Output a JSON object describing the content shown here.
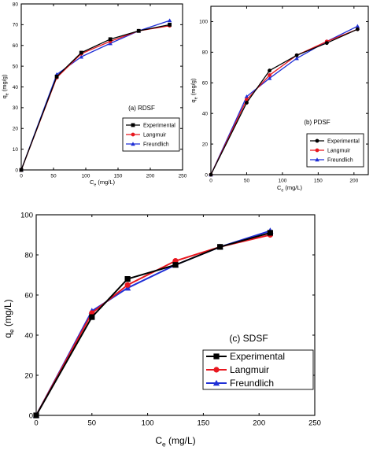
{
  "colors": {
    "Experimental": "#000000",
    "Langmuir": "#e8171f",
    "Freundlich": "#1f2fd6"
  },
  "chart_data": [
    {
      "type": "line",
      "title": "(a) RDSF",
      "xlabel": "Ce (mg/L)",
      "ylabel": "qe (mg/g)",
      "xlim": [
        0,
        250
      ],
      "ylim": [
        0,
        80
      ],
      "xticks": [
        0,
        50,
        100,
        150,
        200,
        250
      ],
      "yticks": [
        0,
        10,
        20,
        30,
        40,
        50,
        60,
        70,
        80
      ],
      "legend": "right",
      "series": [
        {
          "name": "Experimental",
          "marker": "square",
          "x": [
            0,
            55,
            93,
            138,
            182,
            230
          ],
          "y": [
            0,
            45,
            56.5,
            63,
            67,
            70
          ]
        },
        {
          "name": "Langmuir",
          "marker": "circle",
          "x": [
            0,
            55,
            93,
            138,
            182,
            230
          ],
          "y": [
            0,
            44.5,
            56,
            62,
            67,
            69.5
          ]
        },
        {
          "name": "Freundlich",
          "marker": "triangle",
          "x": [
            0,
            55,
            93,
            138,
            182,
            230
          ],
          "y": [
            0,
            46,
            54.5,
            61,
            67,
            72
          ]
        }
      ]
    },
    {
      "type": "line",
      "title": "(b) PDSF",
      "xlabel": "Ce (mg/L)",
      "ylabel": "qe (mg/g)",
      "xlim": [
        0,
        220
      ],
      "ylim": [
        0,
        110
      ],
      "xticks": [
        0,
        50,
        100,
        150,
        200
      ],
      "yticks": [
        0,
        20,
        40,
        60,
        80,
        100
      ],
      "legend": "right",
      "series": [
        {
          "name": "Experimental",
          "marker": "circle",
          "x": [
            0,
            50,
            82,
            120,
            162,
            205
          ],
          "y": [
            0,
            47,
            68,
            78,
            86,
            95
          ]
        },
        {
          "name": "Langmuir",
          "marker": "circle",
          "x": [
            0,
            50,
            82,
            120,
            162,
            205
          ],
          "y": [
            0,
            49,
            65,
            78,
            87,
            95
          ]
        },
        {
          "name": "Freundlich",
          "marker": "triangle",
          "x": [
            0,
            50,
            82,
            120,
            162,
            205
          ],
          "y": [
            0,
            51,
            63,
            76,
            87,
            97
          ]
        }
      ]
    },
    {
      "type": "line",
      "title": "(c) SDSF",
      "xlabel": "Ce (mg/L)",
      "ylabel": "qe (mg/L)",
      "xlim": [
        0,
        250
      ],
      "ylim": [
        0,
        100
      ],
      "xticks": [
        0,
        50,
        100,
        150,
        200,
        250
      ],
      "yticks": [
        0,
        20,
        40,
        60,
        80,
        100
      ],
      "legend": "bottom-right",
      "series": [
        {
          "name": "Experimental",
          "marker": "square",
          "x": [
            0,
            50,
            82,
            125,
            165,
            210
          ],
          "y": [
            0,
            49,
            68,
            75,
            84,
            91
          ]
        },
        {
          "name": "Langmuir",
          "marker": "circle",
          "x": [
            0,
            50,
            82,
            125,
            165,
            210
          ],
          "y": [
            0,
            51,
            65,
            77,
            84,
            90
          ]
        },
        {
          "name": "Freundlich",
          "marker": "triangle",
          "x": [
            0,
            50,
            82,
            125,
            165,
            210
          ],
          "y": [
            0,
            52,
            63.5,
            75,
            84,
            92
          ]
        }
      ]
    }
  ]
}
